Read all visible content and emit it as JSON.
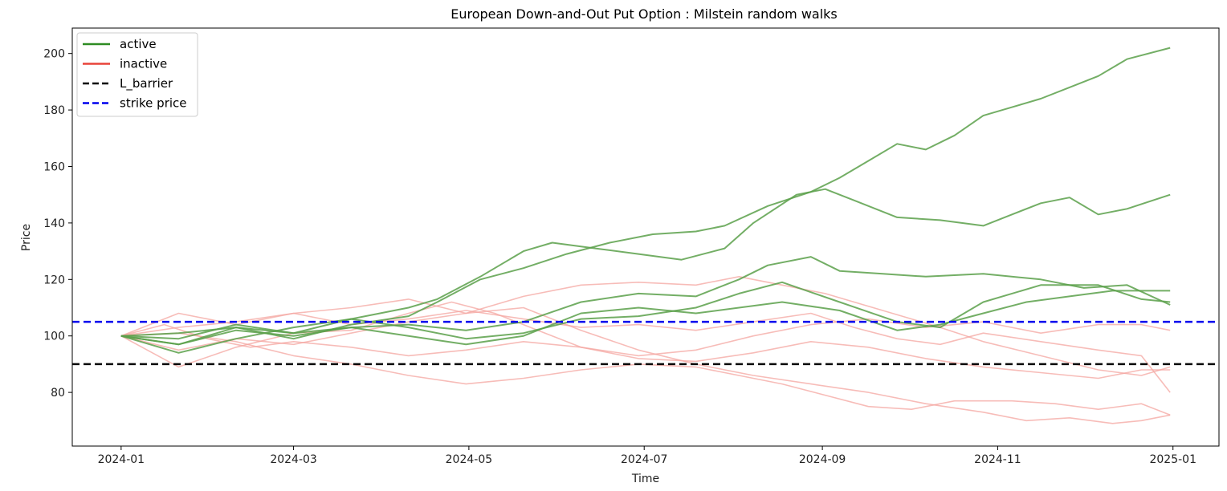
{
  "chart_data": {
    "type": "line",
    "title": "European Down-and-Out Put Option : Milstein random walks",
    "xlabel": "Time",
    "ylabel": "Price",
    "x_start": "2024-01-01",
    "x_end": "2024-12-31",
    "xlim": [
      "2023-12-15",
      "2025-01-17"
    ],
    "ylim": [
      61.0,
      209.0
    ],
    "x_ticks": [
      "2024-01",
      "2024-03",
      "2024-05",
      "2024-07",
      "2024-09",
      "2024-11",
      "2025-01"
    ],
    "y_ticks": [
      80,
      100,
      120,
      140,
      160,
      180,
      200
    ],
    "grid": false,
    "legend_position": "top-left",
    "legend": [
      {
        "label": "active",
        "color": "#2e8b22",
        "style": "solid"
      },
      {
        "label": "inactive",
        "color": "#e8433a",
        "style": "solid"
      },
      {
        "label": "L_barrier",
        "color": "#000000",
        "style": "dashed"
      },
      {
        "label": "strike price",
        "color": "#0000ee",
        "style": "dashed"
      }
    ],
    "hlines": [
      {
        "name": "L_barrier",
        "y": 90,
        "color": "#000000"
      },
      {
        "name": "strike price",
        "y": 105,
        "color": "#0000ee"
      }
    ],
    "series": [
      {
        "status": "active",
        "color": "#5aa04a",
        "values": [
          [
            0,
            100
          ],
          [
            20,
            97
          ],
          [
            40,
            103
          ],
          [
            60,
            99
          ],
          [
            80,
            104
          ],
          [
            100,
            107
          ],
          [
            110,
            112
          ],
          [
            125,
            120
          ],
          [
            140,
            124
          ],
          [
            155,
            129
          ],
          [
            170,
            133
          ],
          [
            185,
            136
          ],
          [
            200,
            137
          ],
          [
            210,
            139
          ],
          [
            225,
            146
          ],
          [
            240,
            151
          ],
          [
            250,
            156
          ],
          [
            260,
            162
          ],
          [
            270,
            168
          ],
          [
            280,
            166
          ],
          [
            290,
            171
          ],
          [
            300,
            178
          ],
          [
            310,
            181
          ],
          [
            320,
            184
          ],
          [
            330,
            188
          ],
          [
            340,
            192
          ],
          [
            350,
            198
          ],
          [
            365,
            202
          ]
        ]
      },
      {
        "status": "active",
        "color": "#5aa04a",
        "values": [
          [
            0,
            100
          ],
          [
            20,
            101
          ],
          [
            40,
            103
          ],
          [
            60,
            101
          ],
          [
            80,
            106
          ],
          [
            100,
            110
          ],
          [
            110,
            113
          ],
          [
            125,
            121
          ],
          [
            140,
            130
          ],
          [
            150,
            133
          ],
          [
            165,
            131
          ],
          [
            180,
            129
          ],
          [
            195,
            127
          ],
          [
            210,
            131
          ],
          [
            220,
            140
          ],
          [
            235,
            150
          ],
          [
            245,
            152
          ],
          [
            255,
            148
          ],
          [
            270,
            142
          ],
          [
            285,
            141
          ],
          [
            300,
            139
          ],
          [
            310,
            143
          ],
          [
            320,
            147
          ],
          [
            330,
            149
          ],
          [
            340,
            143
          ],
          [
            350,
            145
          ],
          [
            365,
            150
          ]
        ]
      },
      {
        "status": "active",
        "color": "#5aa04a",
        "values": [
          [
            0,
            100
          ],
          [
            20,
            97
          ],
          [
            40,
            102
          ],
          [
            60,
            100
          ],
          [
            80,
            103
          ],
          [
            100,
            104
          ],
          [
            120,
            102
          ],
          [
            140,
            105
          ],
          [
            160,
            112
          ],
          [
            180,
            115
          ],
          [
            200,
            114
          ],
          [
            215,
            120
          ],
          [
            225,
            125
          ],
          [
            240,
            128
          ],
          [
            250,
            123
          ],
          [
            265,
            122
          ],
          [
            280,
            121
          ],
          [
            300,
            122
          ],
          [
            320,
            120
          ],
          [
            335,
            117
          ],
          [
            350,
            118
          ],
          [
            365,
            111
          ]
        ]
      },
      {
        "status": "active",
        "color": "#5aa04a",
        "values": [
          [
            0,
            100
          ],
          [
            20,
            94
          ],
          [
            40,
            99
          ],
          [
            60,
            103
          ],
          [
            80,
            106
          ],
          [
            100,
            103
          ],
          [
            120,
            99
          ],
          [
            140,
            101
          ],
          [
            160,
            106
          ],
          [
            180,
            107
          ],
          [
            200,
            110
          ],
          [
            215,
            115
          ],
          [
            230,
            119
          ],
          [
            250,
            112
          ],
          [
            270,
            105
          ],
          [
            285,
            103
          ],
          [
            300,
            112
          ],
          [
            320,
            118
          ],
          [
            340,
            118
          ],
          [
            355,
            113
          ],
          [
            365,
            112
          ]
        ]
      },
      {
        "status": "active",
        "color": "#5aa04a",
        "values": [
          [
            0,
            100
          ],
          [
            20,
            99
          ],
          [
            40,
            104
          ],
          [
            60,
            101
          ],
          [
            80,
            103
          ],
          [
            100,
            100
          ],
          [
            120,
            97
          ],
          [
            140,
            100
          ],
          [
            160,
            108
          ],
          [
            180,
            110
          ],
          [
            200,
            108
          ],
          [
            215,
            110
          ],
          [
            230,
            112
          ],
          [
            250,
            109
          ],
          [
            270,
            102
          ],
          [
            285,
            104
          ],
          [
            300,
            108
          ],
          [
            315,
            112
          ],
          [
            330,
            114
          ],
          [
            345,
            116
          ],
          [
            365,
            116
          ]
        ]
      },
      {
        "status": "inactive",
        "color": "#f4a6a0",
        "values": [
          [
            0,
            100
          ],
          [
            20,
            108
          ],
          [
            40,
            104
          ],
          [
            60,
            108
          ],
          [
            80,
            110
          ],
          [
            100,
            113
          ],
          [
            120,
            108
          ],
          [
            140,
            114
          ],
          [
            160,
            118
          ],
          [
            180,
            119
          ],
          [
            200,
            118
          ],
          [
            215,
            121
          ],
          [
            230,
            118
          ],
          [
            245,
            115
          ],
          [
            265,
            109
          ],
          [
            285,
            103
          ],
          [
            300,
            98
          ],
          [
            320,
            93
          ],
          [
            340,
            88
          ],
          [
            355,
            86
          ],
          [
            365,
            89
          ]
        ]
      },
      {
        "status": "inactive",
        "color": "#f4a6a0",
        "values": [
          [
            0,
            100
          ],
          [
            20,
            101
          ],
          [
            40,
            98
          ],
          [
            60,
            93
          ],
          [
            80,
            90
          ],
          [
            100,
            86
          ],
          [
            120,
            83
          ],
          [
            140,
            85
          ],
          [
            160,
            88
          ],
          [
            180,
            90
          ],
          [
            200,
            89
          ],
          [
            215,
            86
          ],
          [
            230,
            83
          ],
          [
            245,
            79
          ],
          [
            260,
            75
          ],
          [
            275,
            74
          ],
          [
            290,
            77
          ],
          [
            310,
            77
          ],
          [
            325,
            76
          ],
          [
            340,
            74
          ],
          [
            355,
            76
          ],
          [
            365,
            72
          ]
        ]
      },
      {
        "status": "inactive",
        "color": "#f4a6a0",
        "values": [
          [
            0,
            100
          ],
          [
            20,
            95
          ],
          [
            40,
            99
          ],
          [
            60,
            97
          ],
          [
            80,
            101
          ],
          [
            100,
            105
          ],
          [
            120,
            108
          ],
          [
            140,
            110
          ],
          [
            160,
            102
          ],
          [
            180,
            95
          ],
          [
            200,
            90
          ],
          [
            220,
            86
          ],
          [
            240,
            83
          ],
          [
            260,
            80
          ],
          [
            280,
            76
          ],
          [
            300,
            73
          ],
          [
            315,
            70
          ],
          [
            330,
            71
          ],
          [
            345,
            69
          ],
          [
            355,
            70
          ],
          [
            365,
            72
          ]
        ]
      },
      {
        "status": "inactive",
        "color": "#f4a6a0",
        "values": [
          [
            0,
            100
          ],
          [
            20,
            103
          ],
          [
            40,
            105
          ],
          [
            60,
            108
          ],
          [
            80,
            104
          ],
          [
            100,
            106
          ],
          [
            120,
            109
          ],
          [
            140,
            106
          ],
          [
            160,
            103
          ],
          [
            180,
            104
          ],
          [
            200,
            102
          ],
          [
            220,
            105
          ],
          [
            240,
            108
          ],
          [
            255,
            103
          ],
          [
            270,
            99
          ],
          [
            285,
            97
          ],
          [
            300,
            101
          ],
          [
            320,
            98
          ],
          [
            340,
            95
          ],
          [
            355,
            93
          ],
          [
            365,
            80
          ]
        ]
      },
      {
        "status": "inactive",
        "color": "#f4a6a0",
        "values": [
          [
            0,
            100
          ],
          [
            20,
            89
          ],
          [
            40,
            96
          ],
          [
            60,
            101
          ],
          [
            80,
            102
          ],
          [
            100,
            108
          ],
          [
            115,
            112
          ],
          [
            130,
            108
          ],
          [
            145,
            102
          ],
          [
            160,
            96
          ],
          [
            180,
            93
          ],
          [
            200,
            95
          ],
          [
            220,
            100
          ],
          [
            240,
            104
          ],
          [
            260,
            106
          ],
          [
            280,
            103
          ],
          [
            300,
            105
          ],
          [
            320,
            101
          ],
          [
            340,
            104
          ],
          [
            355,
            104
          ],
          [
            365,
            102
          ]
        ]
      },
      {
        "status": "inactive",
        "color": "#f4a6a0",
        "values": [
          [
            0,
            100
          ],
          [
            15,
            104
          ],
          [
            30,
            99
          ],
          [
            45,
            96
          ],
          [
            60,
            98
          ],
          [
            80,
            96
          ],
          [
            100,
            93
          ],
          [
            120,
            95
          ],
          [
            140,
            98
          ],
          [
            160,
            96
          ],
          [
            180,
            92
          ],
          [
            200,
            91
          ],
          [
            220,
            94
          ],
          [
            240,
            98
          ],
          [
            260,
            96
          ],
          [
            280,
            92
          ],
          [
            300,
            89
          ],
          [
            320,
            87
          ],
          [
            340,
            85
          ],
          [
            355,
            88
          ],
          [
            365,
            88
          ]
        ]
      }
    ]
  }
}
